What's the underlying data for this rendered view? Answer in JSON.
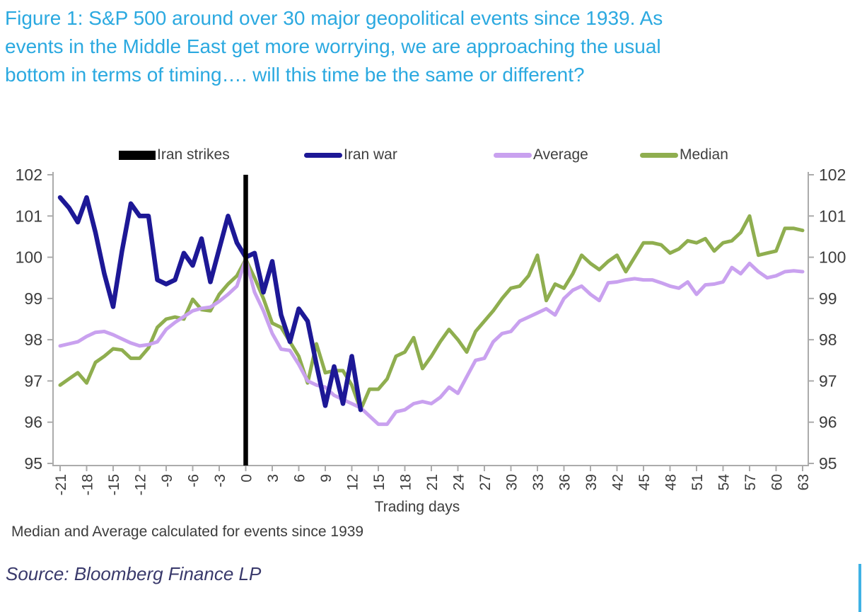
{
  "title": {
    "line1": "Figure 1: S&P 500 around over 30 major geopolitical events since 1939. As",
    "line2": "events in the Middle East get more worrying, we are approaching the usual",
    "line3": "bottom in terms of timing…. will this time be the same or different?"
  },
  "legend": {
    "items": [
      {
        "label": "Iran strikes",
        "color": "#000000",
        "marker": "bar"
      },
      {
        "label": "Iran war",
        "color": "#1D1896",
        "marker": "line"
      },
      {
        "label": "Average",
        "color": "#C9A1EF",
        "marker": "line"
      },
      {
        "label": "Median",
        "color": "#8FAE4F",
        "marker": "line"
      }
    ]
  },
  "colors": {
    "title_blue": "#2BA9E0",
    "navy": "#1D1896",
    "purple": "#C9A1EF",
    "green": "#8FAE4F",
    "event_black": "#000000",
    "axis_gray": "#ABABAB",
    "tick_text": "#3C3C3C",
    "source_text": "#39396B",
    "edge_bar_blue": "#3FB2E5"
  },
  "footnote": "Median and Average calculated for events since 1939",
  "source": "Source: Bloomberg Finance LP",
  "chart_data": {
    "type": "line",
    "xlabel": "Trading days",
    "ylabel": "",
    "ylim": [
      95,
      102
    ],
    "yticks": [
      102,
      101,
      100,
      99,
      98,
      97,
      96,
      95
    ],
    "yticks_sides": "both",
    "xticks": [
      -21,
      -18,
      -15,
      -12,
      -9,
      -6,
      -3,
      0,
      3,
      6,
      9,
      12,
      15,
      18,
      21,
      24,
      27,
      30,
      33,
      36,
      39,
      42,
      45,
      48,
      51,
      54,
      57,
      60,
      63
    ],
    "x_range": [
      -21,
      63
    ],
    "grid": false,
    "legend_position": "top",
    "event_line": {
      "name": "Iran strikes",
      "x": 0,
      "color": "#000000"
    },
    "series": [
      {
        "name": "Iran war",
        "color": "#1D1896",
        "stroke_width": 6.5,
        "x_start": -21,
        "values": [
          101.45,
          101.2,
          100.85,
          101.45,
          100.6,
          99.6,
          98.8,
          100.15,
          101.3,
          101.0,
          101.0,
          99.45,
          99.35,
          99.45,
          100.1,
          99.8,
          100.45,
          99.4,
          100.2,
          101.0,
          100.35,
          100.0,
          100.1,
          99.15,
          99.9,
          98.6,
          97.95,
          98.75,
          98.45,
          97.4,
          96.4,
          97.35,
          96.45,
          97.6,
          96.3
        ]
      },
      {
        "name": "Average",
        "color": "#C9A1EF",
        "stroke_width": 5,
        "x_start": -21,
        "values": [
          97.85,
          97.9,
          97.95,
          98.08,
          98.18,
          98.2,
          98.12,
          98.02,
          97.92,
          97.85,
          97.88,
          97.95,
          98.25,
          98.42,
          98.56,
          98.7,
          98.76,
          98.79,
          98.93,
          99.1,
          99.3,
          99.95,
          99.15,
          98.7,
          98.15,
          97.77,
          97.74,
          97.4,
          97.0,
          96.9,
          96.85,
          96.65,
          96.55,
          96.45,
          96.35,
          96.15,
          95.95,
          95.95,
          96.25,
          96.3,
          96.45,
          96.5,
          96.45,
          96.6,
          96.85,
          96.7,
          97.1,
          97.5,
          97.55,
          97.95,
          98.15,
          98.2,
          98.45,
          98.55,
          98.65,
          98.75,
          98.6,
          99.0,
          99.2,
          99.3,
          99.1,
          98.95,
          99.38,
          99.4,
          99.45,
          99.48,
          99.45,
          99.45,
          99.38,
          99.3,
          99.25,
          99.4,
          99.1,
          99.33,
          99.35,
          99.4,
          99.75,
          99.6,
          99.85,
          99.65,
          99.5,
          99.55,
          99.65,
          99.67,
          99.65
        ]
      },
      {
        "name": "Median",
        "color": "#8FAE4F",
        "stroke_width": 5,
        "x_start": -21,
        "values": [
          96.9,
          97.05,
          97.2,
          96.95,
          97.45,
          97.6,
          97.78,
          97.75,
          97.55,
          97.55,
          97.8,
          98.3,
          98.5,
          98.55,
          98.5,
          98.98,
          98.73,
          98.7,
          99.1,
          99.35,
          99.55,
          99.95,
          99.5,
          99.0,
          98.4,
          98.3,
          97.95,
          97.6,
          96.95,
          97.9,
          97.2,
          97.25,
          97.25,
          96.9,
          96.3,
          96.8,
          96.8,
          97.05,
          97.6,
          97.7,
          98.05,
          97.3,
          97.6,
          97.95,
          98.25,
          98.0,
          97.7,
          98.2,
          98.45,
          98.7,
          99.0,
          99.25,
          99.3,
          99.55,
          100.05,
          98.95,
          99.35,
          99.25,
          99.6,
          100.05,
          99.85,
          99.7,
          99.9,
          100.05,
          99.65,
          100.0,
          100.35,
          100.35,
          100.3,
          100.1,
          100.2,
          100.4,
          100.35,
          100.45,
          100.15,
          100.35,
          100.4,
          100.6,
          101.0,
          100.05,
          100.1,
          100.15,
          100.7,
          100.7,
          100.65
        ]
      }
    ]
  }
}
